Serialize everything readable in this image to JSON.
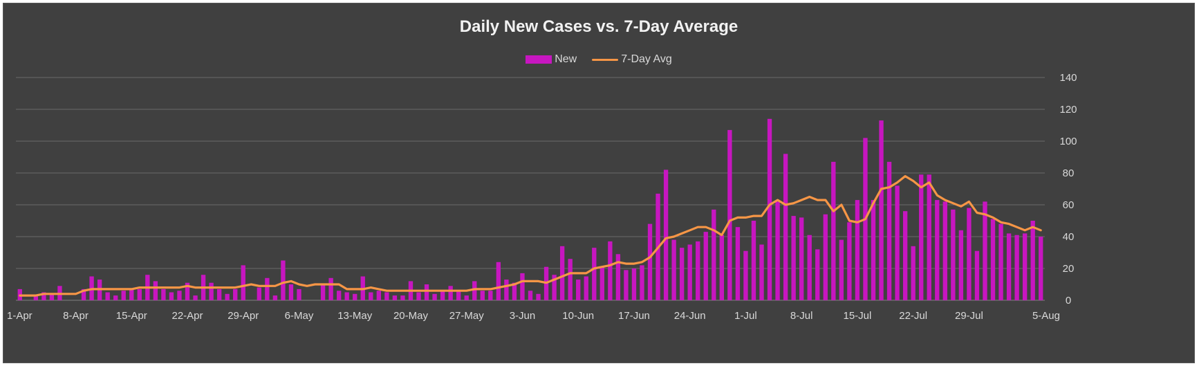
{
  "chart_data": {
    "type": "bar",
    "title": "Daily New Cases vs. 7-Day Average",
    "xlabel": "",
    "ylabel": "",
    "ylim": [
      0,
      140
    ],
    "y_ticks": [
      0,
      20,
      40,
      60,
      80,
      100,
      120,
      140
    ],
    "y_axis_position": "right",
    "grid": true,
    "legend": "top-center",
    "x_tick_labels": [
      "1-Apr",
      "8-Apr",
      "15-Apr",
      "22-Apr",
      "29-Apr",
      "6-May",
      "13-May",
      "20-May",
      "27-May",
      "3-Jun",
      "10-Jun",
      "17-Jun",
      "24-Jun",
      "1-Jul",
      "8-Jul",
      "15-Jul",
      "22-Jul",
      "29-Jul",
      "5-Aug"
    ],
    "series": [
      {
        "name": "New",
        "type": "bar",
        "color": "#c716c0",
        "values": [
          7,
          0,
          3,
          5,
          4,
          9,
          0,
          0,
          7,
          15,
          13,
          5,
          3,
          6,
          7,
          7,
          16,
          12,
          7,
          5,
          6,
          11,
          3,
          16,
          11,
          7,
          4,
          7,
          22,
          0,
          8,
          14,
          3,
          25,
          10,
          7,
          0,
          0,
          10,
          14,
          6,
          5,
          4,
          15,
          5,
          6,
          5,
          3,
          3,
          12,
          5,
          10,
          4,
          6,
          9,
          6,
          3,
          12,
          6,
          6,
          24,
          13,
          11,
          17,
          6,
          4,
          21,
          16,
          34,
          26,
          13,
          15,
          33,
          21,
          37,
          29,
          19,
          20,
          22,
          48,
          67,
          82,
          38,
          33,
          35,
          37,
          43,
          57,
          41,
          107,
          46,
          31,
          50,
          35,
          114,
          62,
          92,
          53,
          52,
          41,
          32,
          54,
          87,
          38,
          49,
          63,
          102,
          63,
          113,
          87,
          72,
          56,
          34,
          79,
          79,
          63,
          62,
          57,
          44,
          58,
          31,
          62,
          51,
          48,
          42,
          41,
          42,
          50,
          40
        ],
        "value_labels": []
      },
      {
        "name": "7-Day Avg",
        "type": "line",
        "color": "#f79646",
        "values": [
          3,
          3,
          3,
          4,
          4,
          4,
          4,
          4,
          6,
          7,
          7,
          7,
          7,
          7,
          7,
          8,
          8,
          8,
          8,
          8,
          8,
          9,
          8,
          8,
          8,
          8,
          8,
          8,
          9,
          10,
          9,
          9,
          9,
          11,
          12,
          10,
          9,
          10,
          10,
          10,
          10,
          7,
          7,
          7,
          8,
          7,
          6,
          6,
          6,
          6,
          6,
          6,
          6,
          6,
          6,
          6,
          6,
          7,
          7,
          7,
          8,
          9,
          10,
          12,
          12,
          12,
          11,
          13,
          15,
          17,
          17,
          17,
          20,
          21,
          22,
          24,
          23,
          23,
          24,
          27,
          33,
          39,
          40,
          42,
          44,
          46,
          46,
          44,
          41,
          50,
          52,
          52,
          53,
          53,
          60,
          63,
          60,
          61,
          63,
          65,
          63,
          63,
          56,
          60,
          50,
          49,
          51,
          61,
          70,
          71,
          74,
          78,
          75,
          71,
          74,
          66,
          63,
          61,
          59,
          62,
          55,
          54,
          52,
          49,
          48,
          46,
          44,
          46,
          44
        ]
      }
    ]
  }
}
